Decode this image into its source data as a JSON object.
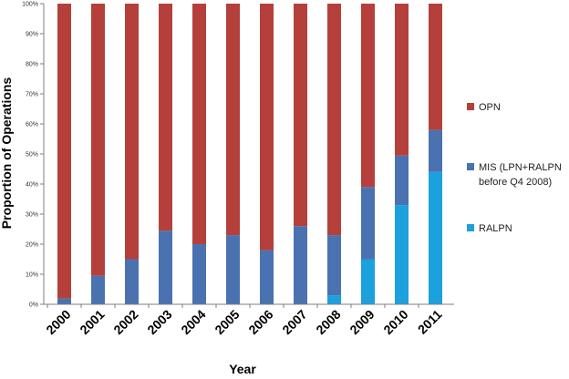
{
  "chart_data": {
    "type": "bar",
    "stacked": true,
    "categories": [
      "2000",
      "2001",
      "2002",
      "2003",
      "2004",
      "2005",
      "2006",
      "2007",
      "2008",
      "2009",
      "2010",
      "2011"
    ],
    "series": [
      {
        "key": "ralpn",
        "name": "RALPN",
        "color": "#1ba1de",
        "values": [
          0,
          0,
          0,
          0,
          0,
          0,
          0,
          0,
          3,
          15,
          33,
          44
        ]
      },
      {
        "key": "mis",
        "name_lines": [
          "MIS (LPN+RALPN",
          "before Q4 2008)"
        ],
        "color": "#4a72b0",
        "values": [
          2,
          9.5,
          15,
          24.5,
          20,
          23,
          18,
          26,
          20,
          24,
          16.5,
          14
        ]
      },
      {
        "key": "opn",
        "name": "OPN",
        "color": "#b5403b",
        "values": [
          98,
          90.5,
          85,
          75.5,
          80,
          77,
          82,
          74,
          77,
          61,
          50.5,
          42
        ]
      }
    ],
    "legend_order": [
      "opn",
      "mis",
      "ralpn"
    ],
    "legend_position": "right",
    "title": "",
    "xlabel": "Year",
    "ylabel": "Proportion of Operations",
    "ylim": [
      0,
      100
    ],
    "yticks": [
      "0%",
      "10%",
      "20%",
      "30%",
      "40%",
      "50%",
      "60%",
      "70%",
      "80%",
      "90%",
      "100%"
    ],
    "grid": false
  }
}
